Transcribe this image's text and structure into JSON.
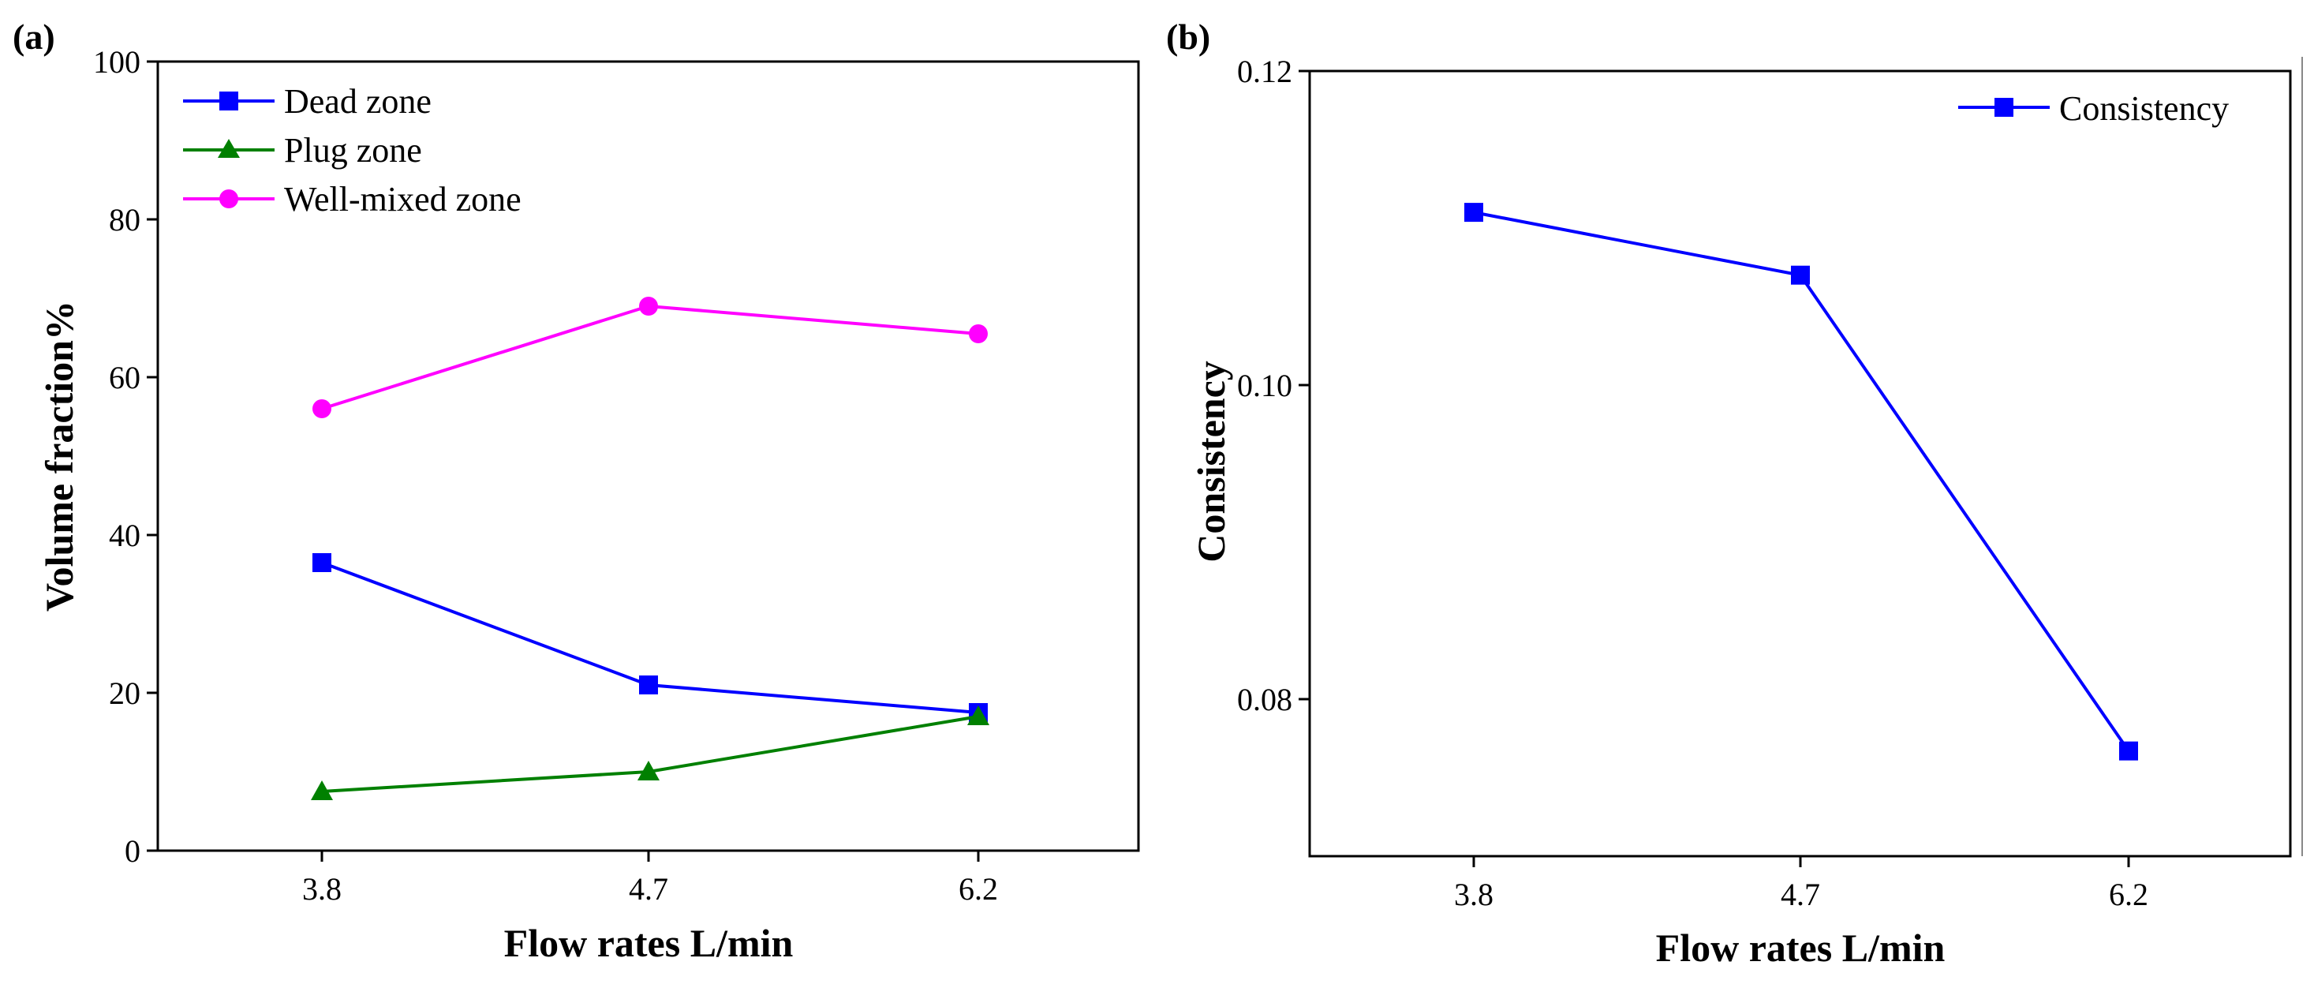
{
  "chart_data": [
    {
      "type": "line",
      "panel_label": "(a)",
      "title": "",
      "xlabel": "Flow rates L/min",
      "ylabel": "Volume fraction%",
      "categories": [
        "3.8",
        "4.7",
        "6.2"
      ],
      "ylim": [
        0,
        100
      ],
      "yticks": [
        "0",
        "20",
        "40",
        "60",
        "80",
        "100"
      ],
      "grid": false,
      "legend_position": "top-left",
      "series": [
        {
          "name": "Dead zone",
          "values": [
            36.5,
            21.0,
            17.5
          ],
          "color": "#0000ff",
          "marker": "square"
        },
        {
          "name": "Plug zone",
          "values": [
            7.5,
            10.0,
            17.0
          ],
          "color": "#008000",
          "marker": "triangle"
        },
        {
          "name": "Well-mixed zone",
          "values": [
            56.0,
            69.0,
            65.5
          ],
          "color": "#ff00ff",
          "marker": "circle"
        }
      ]
    },
    {
      "type": "line",
      "panel_label": "(b)",
      "title": "",
      "xlabel": "Flow rates L/min",
      "ylabel": "Consistency",
      "categories": [
        "3.8",
        "4.7",
        "6.2"
      ],
      "ylim": [
        0.07,
        0.12
      ],
      "yticks": [
        "0.08",
        "0.10",
        "0.12"
      ],
      "grid": false,
      "legend_position": "top-right",
      "series": [
        {
          "name": "Consistency",
          "values": [
            0.111,
            0.107,
            0.0767
          ],
          "color": "#0000ff",
          "marker": "square"
        }
      ]
    }
  ]
}
